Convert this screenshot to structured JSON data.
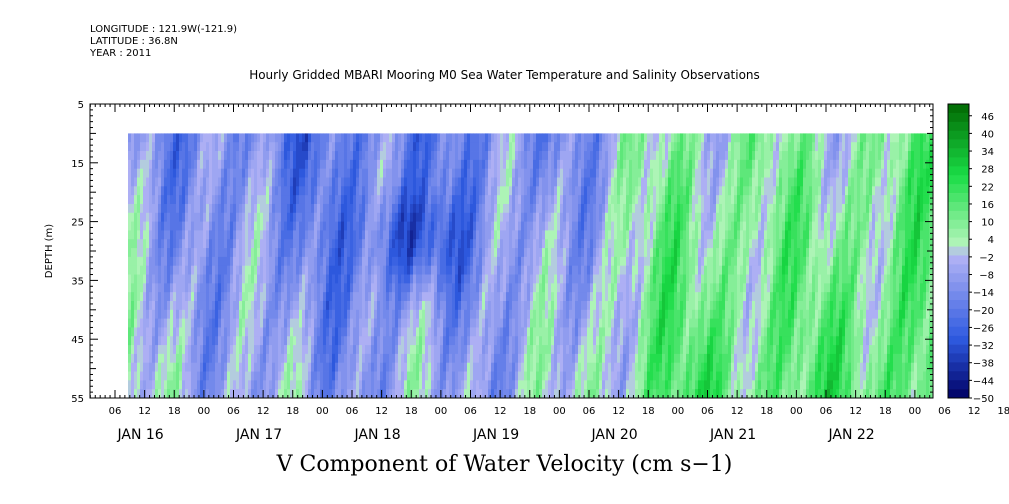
{
  "header": {
    "longitude": "LONGITUDE : 121.9W(-121.9)",
    "latitude": "LATITUDE : 36.8N",
    "year": "YEAR : 2011"
  },
  "title": "Hourly Gridded MBARI Mooring M0 Sea Water Temperature and Salinity Observations",
  "variable_label": "V Component of Water Velocity (cm s−1)",
  "chart_data": {
    "type": "heatmap",
    "ylabel": "DEPTH (m)",
    "y_range": [
      5,
      55
    ],
    "y_ticks": [
      "5",
      "15",
      "25",
      "35",
      "45",
      "55"
    ],
    "data_depth_range": [
      10,
      55
    ],
    "x_hour_labels": [
      "06",
      "12",
      "18",
      "00",
      "06",
      "12",
      "18",
      "00",
      "06",
      "12",
      "18",
      "00",
      "06",
      "12",
      "18",
      "00",
      "06",
      "12",
      "18",
      "00",
      "06",
      "12",
      "18",
      "00",
      "06",
      "12",
      "18",
      "00",
      "06",
      "12",
      "18",
      "00"
    ],
    "x_day_labels": [
      "JAN 16",
      "JAN 17",
      "JAN 18",
      "JAN 19",
      "JAN 20",
      "JAN 21",
      "JAN 22"
    ],
    "colorbar": {
      "labels": [
        "46",
        "40",
        "34",
        "28",
        "22",
        "16",
        "10",
        "4",
        "−2",
        "−8",
        "−14",
        "−20",
        "−26",
        "−32",
        "−38",
        "−44",
        "−50"
      ],
      "min": -50,
      "max": 50,
      "step": 3
    },
    "field_pattern": {
      "day_means_cm_s": [
        -10,
        -14,
        -20,
        -16,
        -14,
        6,
        3,
        8
      ],
      "core_min": {
        "day": "JAN 18",
        "hour": 18,
        "depth_m": 28,
        "value": -44
      }
    },
    "colors": {
      "dark_green": "#006400",
      "green": "#19dc46",
      "light_green": "#b0f5b8",
      "lavender": "#b4b4f5",
      "blue": "#2e5ae0",
      "navy": "#000064"
    }
  }
}
